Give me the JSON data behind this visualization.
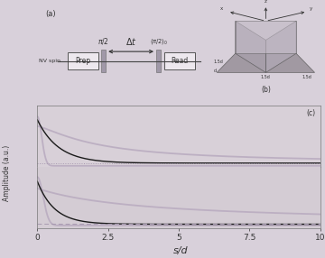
{
  "bg_color": "#d8d0da",
  "panel_a_bg": "#ddd6de",
  "panel_b_bg": "#c8c0cc",
  "panel_c_bg_upper": "#d8d0d8",
  "panel_c_bg_lower": "#d4ccd4",
  "dark_line_color": "#1a1a1a",
  "light_line_color_upper": "#b8aabf",
  "light_line_color_lower": "#b8aabf",
  "dotted_line_color_upper": "#a89ab0",
  "dotted_line_color_lower": "#a89ab0",
  "xlabel": "s/d",
  "ylabel": "Amplitude (a.u.)",
  "panel_c_label": "(c)",
  "panel_a_label": "(a)",
  "xmax": 10.0,
  "xticks": [
    0,
    2.5,
    5,
    7.5,
    10
  ],
  "xtick_labels": [
    "0",
    "2.5",
    "5",
    "7.5",
    "10"
  ]
}
